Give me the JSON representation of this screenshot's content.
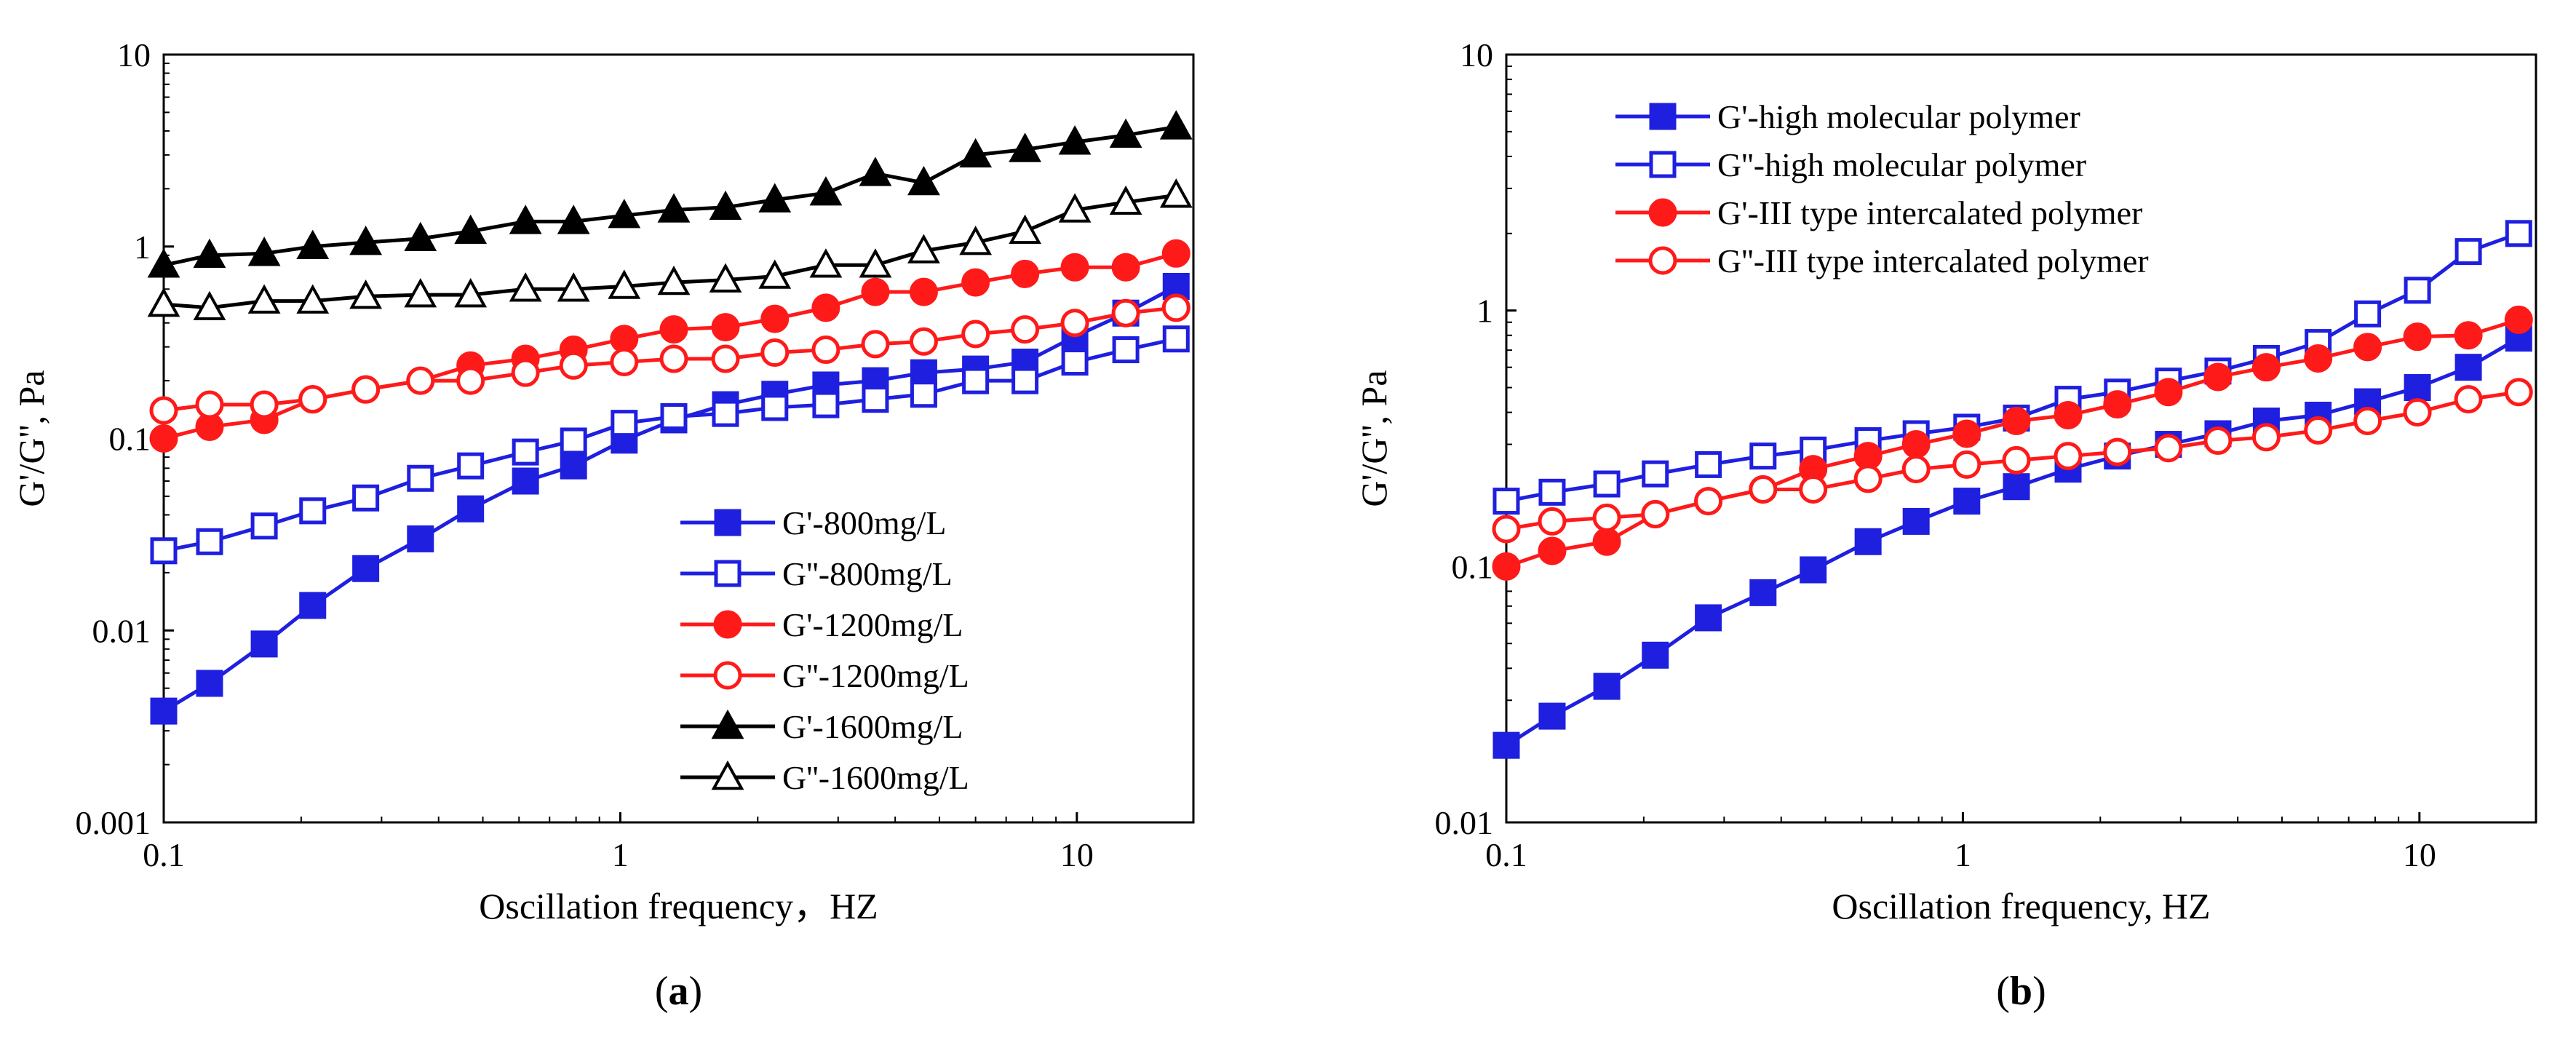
{
  "chart_data": [
    {
      "type": "line",
      "panel_label_open": "(",
      "panel_label_letter": "a",
      "panel_label_close": ")",
      "xlabel": "Oscillation frequency，HZ",
      "ylabel": "G'/G'', Pa",
      "xscale": "log",
      "yscale": "log",
      "xlim": [
        0.1,
        18
      ],
      "ylim": [
        0.001,
        10
      ],
      "xticks": [
        0.1,
        1,
        10
      ],
      "xtick_labels": [
        "0.1",
        "1",
        "10"
      ],
      "yticks": [
        0.001,
        0.01,
        0.1,
        1,
        10
      ],
      "ytick_labels": [
        "0.001",
        "0.01",
        "0.1",
        "1",
        "10"
      ],
      "legend_position": "bottom-right",
      "x": [
        0.1,
        0.126,
        0.166,
        0.212,
        0.277,
        0.365,
        0.47,
        0.62,
        0.79,
        1.02,
        1.31,
        1.7,
        2.18,
        2.82,
        3.62,
        4.62,
        6.0,
        7.7,
        9.9,
        12.8,
        16.5
      ],
      "series": [
        {
          "name": "G'-800mg/L",
          "color": "#1f1fe0",
          "marker": "square",
          "filled": true,
          "values": [
            0.0038,
            0.0053,
            0.0085,
            0.0135,
            0.021,
            0.03,
            0.043,
            0.06,
            0.072,
            0.098,
            0.125,
            0.15,
            0.17,
            0.19,
            0.2,
            0.22,
            0.23,
            0.25,
            0.34,
            0.45,
            0.62
          ]
        },
        {
          "name": "G''-800mg/L",
          "color": "#1f1fe0",
          "marker": "square",
          "filled": false,
          "values": [
            0.026,
            0.029,
            0.035,
            0.042,
            0.049,
            0.062,
            0.072,
            0.085,
            0.097,
            0.12,
            0.13,
            0.135,
            0.145,
            0.15,
            0.16,
            0.17,
            0.2,
            0.2,
            0.25,
            0.29,
            0.33
          ]
        },
        {
          "name": "G'-1200mg/L",
          "color": "#ff1a1a",
          "marker": "circle",
          "filled": true,
          "values": [
            0.1,
            0.115,
            0.125,
            0.16,
            0.18,
            0.2,
            0.24,
            0.26,
            0.29,
            0.33,
            0.37,
            0.38,
            0.42,
            0.48,
            0.58,
            0.58,
            0.65,
            0.72,
            0.78,
            0.78,
            0.92
          ]
        },
        {
          "name": "G''-1200mg/L",
          "color": "#ff1a1a",
          "marker": "circle",
          "filled": false,
          "values": [
            0.14,
            0.15,
            0.15,
            0.16,
            0.18,
            0.2,
            0.2,
            0.22,
            0.24,
            0.25,
            0.26,
            0.26,
            0.28,
            0.29,
            0.31,
            0.32,
            0.35,
            0.37,
            0.4,
            0.45,
            0.48
          ]
        },
        {
          "name": "G'-1600mg/L",
          "color": "#000000",
          "marker": "triangle",
          "filled": true,
          "values": [
            0.8,
            0.9,
            0.92,
            1.0,
            1.05,
            1.1,
            1.2,
            1.35,
            1.35,
            1.45,
            1.55,
            1.6,
            1.75,
            1.9,
            2.4,
            2.15,
            3.0,
            3.2,
            3.5,
            3.8,
            4.2
          ]
        },
        {
          "name": "G''-1600mg/L",
          "color": "#000000",
          "marker": "triangle",
          "filled": false,
          "values": [
            0.5,
            0.48,
            0.52,
            0.52,
            0.55,
            0.56,
            0.56,
            0.6,
            0.6,
            0.62,
            0.65,
            0.67,
            0.7,
            0.8,
            0.8,
            0.95,
            1.05,
            1.2,
            1.55,
            1.7,
            1.85
          ]
        }
      ]
    },
    {
      "type": "line",
      "panel_label_open": "(",
      "panel_label_letter": "b",
      "panel_label_close": ")",
      "xlabel": "Oscillation frequency, HZ",
      "ylabel": "G'/G'', Pa",
      "xscale": "log",
      "yscale": "log",
      "xlim": [
        0.1,
        18
      ],
      "ylim": [
        0.01,
        10
      ],
      "xticks": [
        0.1,
        1,
        10
      ],
      "xtick_labels": [
        "0.1",
        "1",
        "10"
      ],
      "yticks": [
        0.01,
        0.1,
        1,
        10
      ],
      "ytick_labels": [
        "0.01",
        "0.1",
        "1",
        "10"
      ],
      "legend_position": "top-left",
      "x": [
        0.1,
        0.126,
        0.166,
        0.212,
        0.277,
        0.365,
        0.47,
        0.62,
        0.79,
        1.02,
        1.31,
        1.7,
        2.18,
        2.82,
        3.62,
        4.62,
        6.0,
        7.7,
        9.9,
        12.8,
        16.5
      ],
      "series": [
        {
          "name": "G'-high molecular polymer",
          "color": "#1f1fe0",
          "marker": "square",
          "filled": true,
          "values": [
            0.02,
            0.026,
            0.034,
            0.045,
            0.063,
            0.079,
            0.097,
            0.125,
            0.15,
            0.18,
            0.205,
            0.24,
            0.27,
            0.3,
            0.33,
            0.37,
            0.39,
            0.44,
            0.5,
            0.6,
            0.78
          ]
        },
        {
          "name": "G''-high molecular polymer",
          "color": "#1f1fe0",
          "marker": "square",
          "filled": false,
          "values": [
            0.18,
            0.195,
            0.21,
            0.23,
            0.25,
            0.27,
            0.285,
            0.31,
            0.33,
            0.35,
            0.38,
            0.45,
            0.48,
            0.53,
            0.58,
            0.65,
            0.75,
            0.97,
            1.2,
            1.7,
            2.0
          ]
        },
        {
          "name": "G'-III type intercalated polymer",
          "color": "#ff1a1a",
          "marker": "circle",
          "filled": true,
          "values": [
            0.1,
            0.115,
            0.125,
            0.16,
            0.18,
            0.2,
            0.24,
            0.27,
            0.3,
            0.33,
            0.37,
            0.39,
            0.43,
            0.48,
            0.55,
            0.6,
            0.65,
            0.72,
            0.79,
            0.8,
            0.92
          ]
        },
        {
          "name": "G''-III type intercalated polymer",
          "color": "#ff1a1a",
          "marker": "circle",
          "filled": false,
          "values": [
            0.14,
            0.15,
            0.155,
            0.16,
            0.18,
            0.2,
            0.2,
            0.22,
            0.24,
            0.25,
            0.26,
            0.27,
            0.28,
            0.29,
            0.31,
            0.32,
            0.34,
            0.37,
            0.4,
            0.45,
            0.48
          ]
        }
      ]
    }
  ]
}
